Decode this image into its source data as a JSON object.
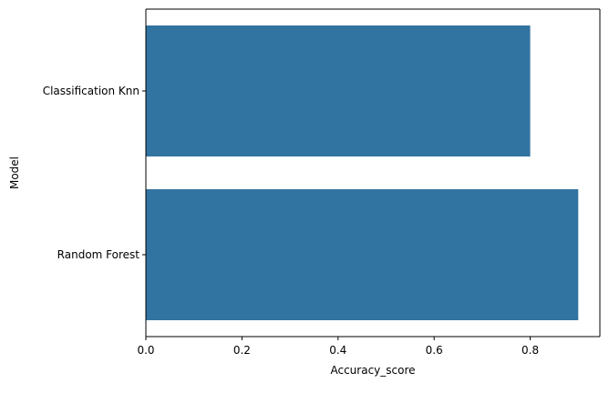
{
  "chart_data": {
    "type": "bar",
    "orientation": "horizontal",
    "categories": [
      "Classification Knn",
      "Random Forest"
    ],
    "values": [
      0.8,
      0.9
    ],
    "title": "",
    "xlabel": "Accuracy_score",
    "ylabel": "Model",
    "xlim": [
      0,
      0.945
    ],
    "xticks": [
      "0.0",
      "0.2",
      "0.4",
      "0.6",
      "0.8"
    ],
    "xtick_values": [
      0.0,
      0.2,
      0.4,
      0.6,
      0.8
    ],
    "grid": false,
    "legend": "none",
    "bar_color": "#3274a1"
  }
}
